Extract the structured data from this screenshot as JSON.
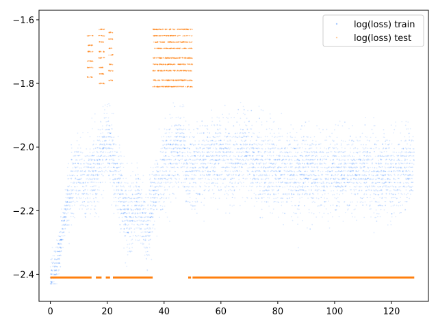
{
  "chart_data": {
    "type": "scatter",
    "title": "",
    "xlabel": "",
    "ylabel": "",
    "xlim": [
      -4,
      133
    ],
    "ylim": [
      -2.485,
      -1.57
    ],
    "x_ticks": [
      0,
      20,
      40,
      60,
      80,
      100,
      120
    ],
    "y_ticks": [
      -2.4,
      -2.2,
      -2.0,
      -1.8,
      -1.6
    ],
    "grid": false,
    "legend_position": "top-right",
    "series": [
      {
        "name": "log(loss) train",
        "color": "#1f77ff",
        "marker": "point",
        "alpha": 0.15,
        "x_range": [
          0,
          128
        ],
        "y_center_profile": [
          [
            0,
            -2.4
          ],
          [
            2,
            -2.38
          ],
          [
            4,
            -2.28
          ],
          [
            6,
            -2.18
          ],
          [
            8,
            -2.1
          ],
          [
            10,
            -2.08
          ],
          [
            12,
            -2.12
          ],
          [
            14,
            -2.08
          ],
          [
            16,
            -2.1
          ],
          [
            18,
            -2.02
          ],
          [
            20,
            -1.98
          ],
          [
            22,
            -2.05
          ],
          [
            24,
            -2.12
          ],
          [
            26,
            -2.18
          ],
          [
            28,
            -2.24
          ],
          [
            30,
            -2.16
          ],
          [
            32,
            -2.22
          ],
          [
            34,
            -2.26
          ],
          [
            36,
            -2.18
          ],
          [
            38,
            -2.1
          ],
          [
            40,
            -2.06
          ],
          [
            42,
            -2.04
          ],
          [
            44,
            -2.02
          ],
          [
            46,
            -2.0
          ],
          [
            48,
            -2.06
          ],
          [
            50,
            -2.08
          ],
          [
            52,
            -2.06
          ],
          [
            56,
            -2.04
          ],
          [
            60,
            -2.02
          ],
          [
            64,
            -2.06
          ],
          [
            68,
            -2.02
          ],
          [
            72,
            -2.06
          ],
          [
            80,
            -2.07
          ],
          [
            90,
            -2.08
          ],
          [
            100,
            -2.08
          ],
          [
            110,
            -2.08
          ],
          [
            120,
            -2.09
          ],
          [
            124,
            -2.07
          ],
          [
            128,
            -2.05
          ]
        ],
        "y_min": -2.43,
        "y_max": -1.86
      },
      {
        "name": "log(loss) test",
        "color": "#ff7f0e",
        "marker": "point",
        "baseline": -2.41,
        "baseline_segments": [
          [
            0,
            14.5
          ],
          [
            16,
            18
          ],
          [
            19.5,
            21
          ],
          [
            22,
            36
          ],
          [
            48.5,
            49.5
          ],
          [
            50,
            128
          ]
        ],
        "scatter_clusters": [
          {
            "x_range": [
              13,
              15
            ],
            "y_levels": [
              -1.65,
              -1.68,
              -1.7,
              -1.73,
              -1.75,
              -1.78
            ]
          },
          {
            "x_range": [
              17,
              19
            ],
            "y_levels": [
              -1.63,
              -1.65,
              -1.67,
              -1.7,
              -1.72,
              -1.75,
              -1.77,
              -1.8
            ]
          },
          {
            "x_range": [
              20.5,
              22
            ],
            "y_levels": [
              -1.64,
              -1.66,
              -1.69,
              -1.71,
              -1.74,
              -1.76,
              -1.79
            ]
          },
          {
            "x_range": [
              36,
              50
            ],
            "y_levels": [
              -1.63,
              -1.65,
              -1.67,
              -1.69,
              -1.72,
              -1.74,
              -1.76,
              -1.79,
              -1.81
            ]
          }
        ]
      }
    ]
  }
}
